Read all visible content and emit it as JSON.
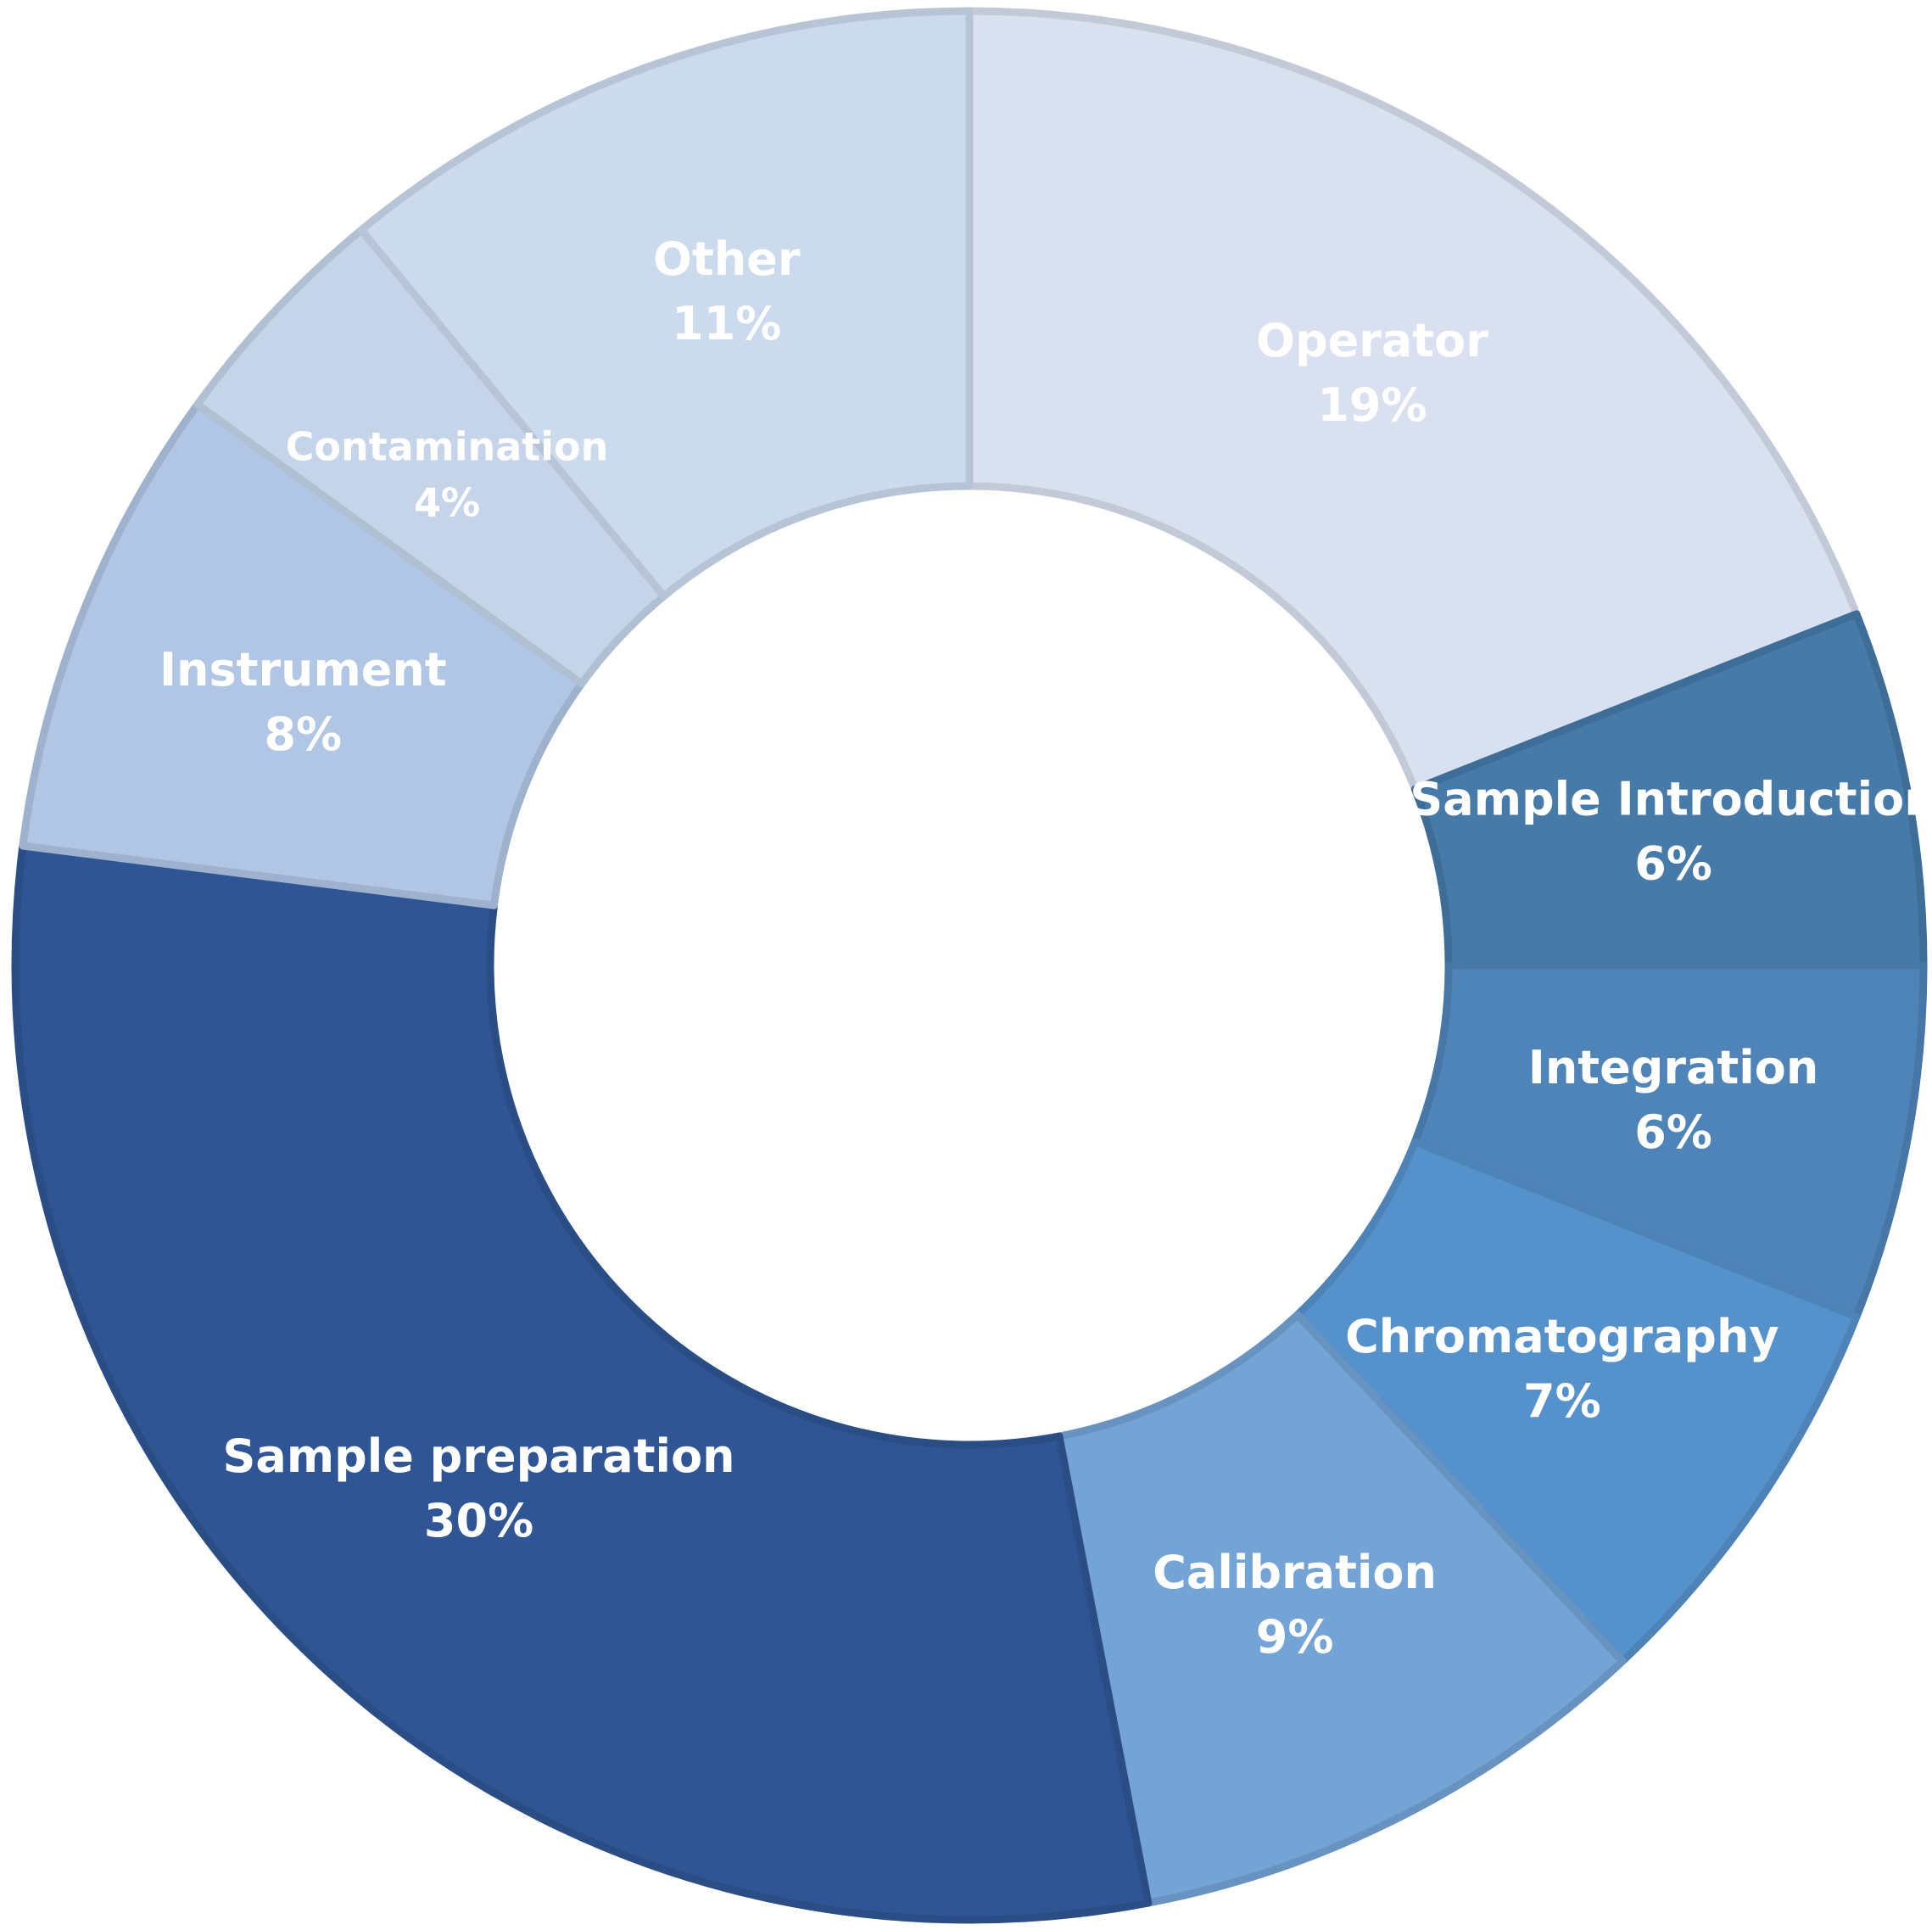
{
  "chart_data": {
    "type": "pie",
    "variant": "donut",
    "title": "",
    "start": "12 o'clock",
    "direction": "clockwise",
    "slices": [
      {
        "label": "Operator",
        "value": 19,
        "value_label": "19%",
        "color": "#d9e0ef"
      },
      {
        "label": "Sample Introduction",
        "value": 6,
        "value_label": "6%",
        "color": "#457aa9"
      },
      {
        "label": "Integration",
        "value": 6,
        "value_label": "6%",
        "color": "#4f84b9"
      },
      {
        "label": "Chromatography",
        "value": 7,
        "value_label": "7%",
        "color": "#5592cb"
      },
      {
        "label": "Calibration",
        "value": 9,
        "value_label": "9%",
        "color": "#74a3d6"
      },
      {
        "label": "Sample preparation",
        "value": 30,
        "value_label": "30%",
        "color": "#2f5594"
      },
      {
        "label": "Instrument",
        "value": 8,
        "value_label": "8%",
        "color": "#b1c6e4"
      },
      {
        "label": "Contamination",
        "value": 4,
        "value_label": "4%",
        "color": "#c5d4e9"
      },
      {
        "label": "Other",
        "value": 11,
        "value_label": "11%",
        "color": "#cbdaed"
      }
    ]
  }
}
